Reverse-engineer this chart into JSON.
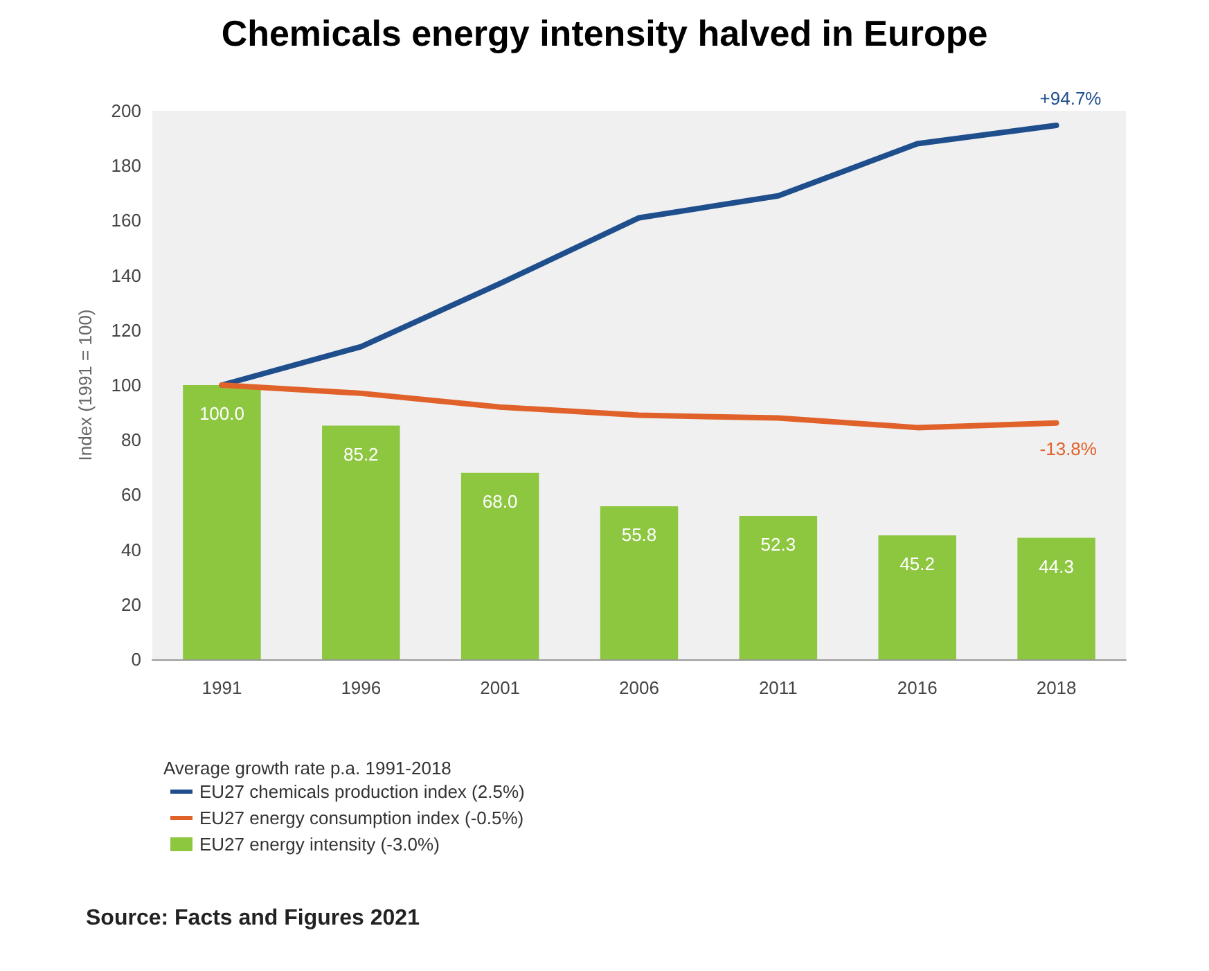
{
  "chart_data": {
    "type": "bar",
    "title": "Chemicals energy intensity halved in Europe",
    "ylabel": "Index (1991 = 100)",
    "legend_title": "Average growth rate p.a. 1991-2018",
    "categories": [
      "1991",
      "1996",
      "2001",
      "2006",
      "2011",
      "2016",
      "2018"
    ],
    "series": [
      {
        "name": "EU27 chemicals production index (2.5%)",
        "type": "line",
        "color": "#1f4e8c",
        "values": [
          100,
          114,
          137,
          161,
          169,
          188,
          194.7
        ]
      },
      {
        "name": "EU27 energy consumption index (-0.5%)",
        "type": "line",
        "color": "#e0622a",
        "values": [
          100,
          97,
          92,
          89,
          88,
          84.5,
          86.2
        ]
      },
      {
        "name": "EU27 energy intensity (-3.0%)",
        "color": "#8dc63f",
        "values": [
          100,
          85.2,
          68.0,
          55.8,
          52.3,
          45.2,
          44.3
        ],
        "value_labels": [
          "100.0",
          "85.2",
          "68.0",
          "55.8",
          "52.3",
          "45.2",
          "44.3"
        ]
      }
    ],
    "ylim": [
      0,
      200
    ],
    "yticks": [
      0,
      20,
      40,
      60,
      80,
      100,
      120,
      140,
      160,
      180,
      200
    ],
    "grid": false,
    "legend": "bottom left",
    "marker": "none",
    "line_style": "solid",
    "annotations": [
      {
        "text": "+94.7%",
        "x": "2018",
        "y": 194.7
      },
      {
        "text": "-13.8%",
        "x": "2018",
        "y": 86.2
      },
      "Source: Facts and Figures 2021"
    ]
  }
}
